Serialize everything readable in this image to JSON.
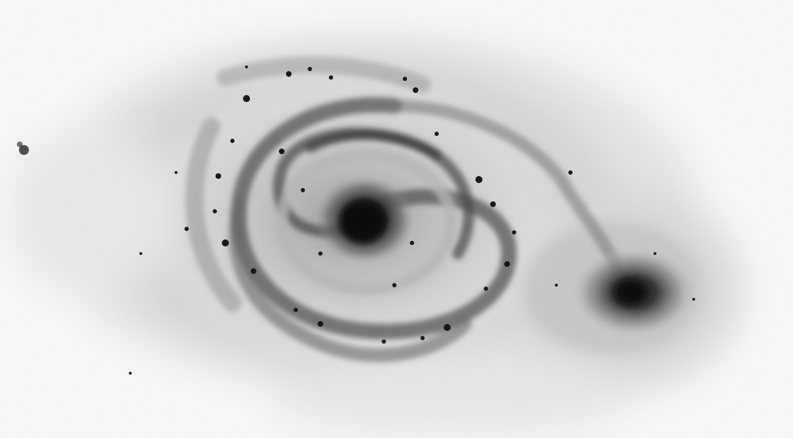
{
  "image": {
    "subject": "spiral-galaxy",
    "rendering": "inverted-grayscale",
    "colors": {
      "background": "#ffffff",
      "core": "#0a0a0a",
      "arms": "#5a5a5a",
      "halo": "#d9d9d9",
      "companion_core": "#1e1e1e"
    }
  }
}
